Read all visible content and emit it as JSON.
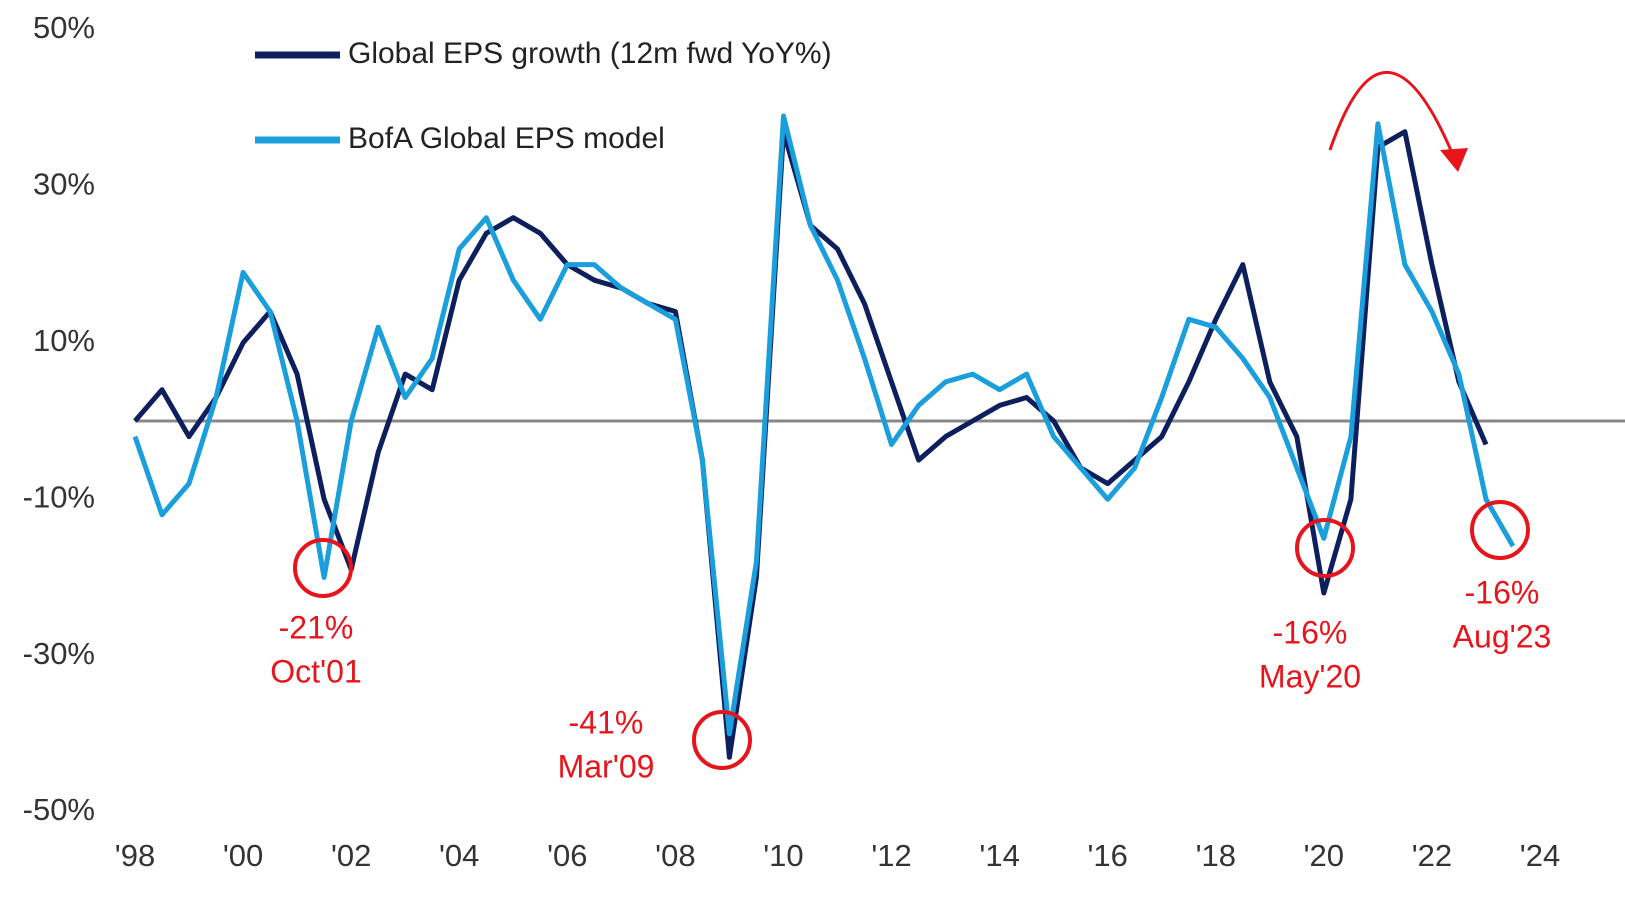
{
  "chart_data": {
    "type": "line",
    "x": [
      1998,
      1998.5,
      1999,
      1999.5,
      2000,
      2000.5,
      2001,
      2001.5,
      2002,
      2002.5,
      2003,
      2003.5,
      2004,
      2004.5,
      2005,
      2005.5,
      2006,
      2006.5,
      2007,
      2007.5,
      2008,
      2008.5,
      2009,
      2009.5,
      2010,
      2010.5,
      2011,
      2011.5,
      2012,
      2012.5,
      2013,
      2013.5,
      2014,
      2014.5,
      2015,
      2015.5,
      2016,
      2016.5,
      2017,
      2017.5,
      2018,
      2018.5,
      2019,
      2019.5,
      2020,
      2020.5,
      2021,
      2021.5,
      2022,
      2022.5,
      2023,
      2023.5
    ],
    "series": [
      {
        "name": "Global EPS growth (12m fwd YoY%)",
        "color": "#0d1f5c",
        "values": [
          0,
          4,
          -2,
          3,
          10,
          14,
          6,
          -10,
          -19,
          -4,
          6,
          4,
          18,
          24,
          26,
          24,
          20,
          18,
          17,
          15,
          14,
          -5,
          -43,
          -20,
          37,
          25,
          22,
          15,
          5,
          -5,
          -2,
          0,
          2,
          3,
          0,
          -6,
          -8,
          -5,
          -2,
          5,
          13,
          20,
          5,
          -2,
          -22,
          -10,
          35,
          37,
          20,
          5,
          -3,
          null
        ]
      },
      {
        "name": "BofA Global EPS model",
        "color": "#1a9fdc",
        "values": [
          -2,
          -12,
          -8,
          3,
          19,
          14,
          0,
          -20,
          0,
          12,
          3,
          8,
          22,
          26,
          18,
          13,
          20,
          20,
          17,
          15,
          13,
          -5,
          -40,
          -18,
          39,
          25,
          18,
          8,
          -3,
          2,
          5,
          6,
          4,
          6,
          -2,
          -6,
          -10,
          -6,
          3,
          13,
          12,
          8,
          3,
          -6,
          -15,
          -2,
          38,
          20,
          14,
          6,
          -10,
          -16
        ]
      }
    ],
    "xlim": [
      1998,
      2024
    ],
    "xticks": [
      {
        "value": 1998,
        "label": "'98"
      },
      {
        "value": 2000,
        "label": "'00"
      },
      {
        "value": 2002,
        "label": "'02"
      },
      {
        "value": 2004,
        "label": "'04"
      },
      {
        "value": 2006,
        "label": "'06"
      },
      {
        "value": 2008,
        "label": "'08"
      },
      {
        "value": 2010,
        "label": "'10"
      },
      {
        "value": 2012,
        "label": "'12"
      },
      {
        "value": 2014,
        "label": "'14"
      },
      {
        "value": 2016,
        "label": "'16"
      },
      {
        "value": 2018,
        "label": "'18"
      },
      {
        "value": 2020,
        "label": "'20"
      },
      {
        "value": 2022,
        "label": "'22"
      },
      {
        "value": 2024,
        "label": "'24"
      }
    ],
    "ylim": [
      -50,
      50
    ],
    "yticks": [
      {
        "value": 50,
        "label": "50%"
      },
      {
        "value": 30,
        "label": "30%"
      },
      {
        "value": 10,
        "label": "10%"
      },
      {
        "value": -10,
        "label": "-10%"
      },
      {
        "value": -30,
        "label": "-30%"
      },
      {
        "value": -50,
        "label": "-50%"
      }
    ],
    "zero_line": true,
    "legend": "top-left",
    "annotations": [
      {
        "value": "-21%",
        "date": "Oct'01"
      },
      {
        "value": "-41%",
        "date": "Mar'09"
      },
      {
        "value": "-16%",
        "date": "May'20"
      },
      {
        "value": "-16%",
        "date": "Aug'23"
      }
    ]
  }
}
